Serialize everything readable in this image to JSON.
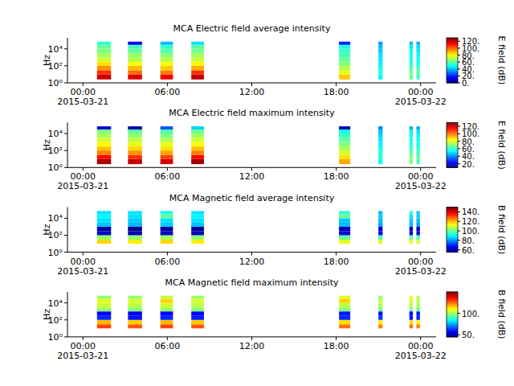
{
  "chart_data": [
    {
      "type": "heatmap",
      "title": "MCA  Electric field average intensity",
      "y_label": "Hz",
      "log": "y",
      "xlim": [
        -1.1,
        25.1
      ],
      "xticks": [
        {
          "value": 0,
          "label": "00:00"
        },
        {
          "value": 6,
          "label": "06:00"
        },
        {
          "value": 12,
          "label": "12:00"
        },
        {
          "value": 18,
          "label": "18:00"
        },
        {
          "value": 24,
          "label": "00:00"
        }
      ],
      "x_date_labels": [
        {
          "value": 0,
          "label": "2015-03-21"
        },
        {
          "value": 24,
          "label": "2015-03-22"
        }
      ],
      "ylim": [
        1,
        200000
      ],
      "yticks": [
        {
          "value": 1,
          "label": "10⁰"
        },
        {
          "value": 100,
          "label": "10²"
        },
        {
          "value": 10000,
          "label": "10⁴"
        }
      ],
      "x_ranges": [
        [
          1.0,
          2.0
        ],
        [
          3.2,
          4.2
        ],
        [
          5.5,
          6.4
        ],
        [
          7.7,
          8.6
        ],
        [
          18.2,
          19.0
        ],
        [
          21.0,
          21.3
        ],
        [
          23.2,
          23.45
        ],
        [
          23.7,
          23.95
        ]
      ],
      "bands": [
        2.5,
        10,
        30,
        100,
        300,
        1000,
        3000,
        10000,
        30000,
        70000
      ],
      "cells": [
        [
          120,
          108,
          95,
          85,
          75,
          70,
          65,
          62,
          55
        ],
        [
          118,
          100,
          90,
          80,
          72,
          68,
          62,
          58,
          15
        ],
        [
          115,
          98,
          88,
          80,
          72,
          66,
          60,
          55,
          40
        ],
        [
          122,
          108,
          92,
          82,
          74,
          70,
          64,
          60,
          45
        ],
        [
          88,
          78,
          72,
          66,
          62,
          58,
          56,
          52,
          20
        ],
        [
          48,
          52,
          50,
          48,
          46,
          45,
          42,
          40,
          35
        ],
        [
          62,
          64,
          58,
          55,
          52,
          50,
          48,
          46,
          40
        ],
        [
          56,
          60,
          56,
          52,
          50,
          48,
          46,
          44,
          38
        ]
      ],
      "colorbar": {
        "label": "E field (dB)",
        "range": [
          0,
          130
        ],
        "ticks": [
          {
            "value": 0,
            "label": "0."
          },
          {
            "value": 20,
            "label": "20."
          },
          {
            "value": 40,
            "label": "40."
          },
          {
            "value": 60,
            "label": "60."
          },
          {
            "value": 80,
            "label": "80."
          },
          {
            "value": 100,
            "label": "100."
          },
          {
            "value": 120,
            "label": "120."
          }
        ]
      }
    },
    {
      "type": "heatmap",
      "title": "MCA  Electric field maximum intensity",
      "y_label": "Hz",
      "log": "y",
      "xlim": [
        -1.1,
        25.1
      ],
      "xticks": [
        {
          "value": 0,
          "label": "00:00"
        },
        {
          "value": 6,
          "label": "06:00"
        },
        {
          "value": 12,
          "label": "12:00"
        },
        {
          "value": 18,
          "label": "18:00"
        },
        {
          "value": 24,
          "label": "00:00"
        }
      ],
      "x_date_labels": [
        {
          "value": 0,
          "label": "2015-03-21"
        },
        {
          "value": 24,
          "label": "2015-03-22"
        }
      ],
      "ylim": [
        1,
        200000
      ],
      "yticks": [
        {
          "value": 1,
          "label": "10⁰"
        },
        {
          "value": 100,
          "label": "10²"
        },
        {
          "value": 10000,
          "label": "10⁴"
        }
      ],
      "x_ranges": [
        [
          1.0,
          2.0
        ],
        [
          3.2,
          4.2
        ],
        [
          5.5,
          6.4
        ],
        [
          7.7,
          8.6
        ],
        [
          18.2,
          19.0
        ],
        [
          21.0,
          21.3
        ],
        [
          23.2,
          23.45
        ],
        [
          23.7,
          23.95
        ]
      ],
      "bands": [
        2.5,
        10,
        30,
        100,
        300,
        1000,
        3000,
        10000,
        30000,
        70000
      ],
      "cells": [
        [
          125,
          115,
          100,
          92,
          85,
          80,
          75,
          70,
          20
        ],
        [
          122,
          110,
          98,
          90,
          82,
          78,
          72,
          66,
          15
        ],
        [
          120,
          108,
          96,
          88,
          82,
          76,
          70,
          65,
          35
        ],
        [
          126,
          115,
          100,
          92,
          84,
          80,
          74,
          68,
          50
        ],
        [
          95,
          88,
          80,
          75,
          70,
          66,
          62,
          58,
          15
        ],
        [
          55,
          60,
          58,
          56,
          54,
          52,
          50,
          48,
          40
        ],
        [
          70,
          72,
          66,
          62,
          60,
          58,
          56,
          54,
          45
        ],
        [
          64,
          66,
          62,
          60,
          58,
          56,
          54,
          52,
          45
        ]
      ],
      "colorbar": {
        "label": "E field (dB)",
        "range": [
          10,
          130
        ],
        "ticks": [
          {
            "value": 20,
            "label": "20."
          },
          {
            "value": 40,
            "label": "40."
          },
          {
            "value": 60,
            "label": "60."
          },
          {
            "value": 80,
            "label": "80."
          },
          {
            "value": 100,
            "label": "100."
          },
          {
            "value": 120,
            "label": "120."
          }
        ]
      }
    },
    {
      "type": "heatmap",
      "title": "MCA  Magnetic field average intensity",
      "y_label": "Hz",
      "log": "y",
      "xlim": [
        -1.1,
        25.1
      ],
      "xticks": [
        {
          "value": 0,
          "label": "00:00"
        },
        {
          "value": 6,
          "label": "06:00"
        },
        {
          "value": 12,
          "label": "12:00"
        },
        {
          "value": 18,
          "label": "18:00"
        },
        {
          "value": 24,
          "label": "00:00"
        }
      ],
      "x_date_labels": [
        {
          "value": 0,
          "label": "2015-03-21"
        },
        {
          "value": 24,
          "label": "2015-03-22"
        }
      ],
      "ylim": [
        1,
        200000
      ],
      "yticks": [
        {
          "value": 1,
          "label": "10⁰"
        },
        {
          "value": 100,
          "label": "10²"
        },
        {
          "value": 10000,
          "label": "10⁴"
        }
      ],
      "x_ranges": [
        [
          1.0,
          2.0
        ],
        [
          3.2,
          4.2
        ],
        [
          5.5,
          6.4
        ],
        [
          7.7,
          8.6
        ],
        [
          18.2,
          19.0
        ],
        [
          21.0,
          21.3
        ],
        [
          23.2,
          23.45
        ],
        [
          23.7,
          23.95
        ]
      ],
      "bands": [
        2.5,
        10,
        30,
        100,
        300,
        1000,
        3000,
        10000,
        30000,
        70000
      ],
      "cells": [
        [
          null,
          118,
          105,
          62,
          58,
          85,
          88,
          90,
          88
        ],
        [
          null,
          116,
          104,
          60,
          56,
          84,
          86,
          88,
          88
        ],
        [
          null,
          118,
          106,
          62,
          58,
          86,
          88,
          100,
          92
        ],
        [
          null,
          116,
          104,
          61,
          57,
          85,
          88,
          90,
          88
        ],
        [
          null,
          112,
          100,
          64,
          60,
          84,
          86,
          100,
          95
        ],
        [
          null,
          110,
          98,
          66,
          62,
          82,
          84,
          86,
          84
        ],
        [
          null,
          112,
          100,
          64,
          60,
          84,
          86,
          88,
          95
        ],
        [
          null,
          110,
          98,
          64,
          60,
          82,
          84,
          86,
          86
        ]
      ],
      "colorbar": {
        "label": "B field (dB)",
        "range": [
          55,
          150
        ],
        "ticks": [
          {
            "value": 60,
            "label": "60."
          },
          {
            "value": 80,
            "label": "80."
          },
          {
            "value": 100,
            "label": "100."
          },
          {
            "value": 120,
            "label": "120."
          },
          {
            "value": 140,
            "label": "140."
          }
        ]
      }
    },
    {
      "type": "heatmap",
      "title": "MCA  Magnetic field maximum intensity",
      "y_label": "Hz",
      "log": "y",
      "xlim": [
        -1.1,
        25.1
      ],
      "xticks": [
        {
          "value": 0,
          "label": "00:00"
        },
        {
          "value": 6,
          "label": "06:00"
        },
        {
          "value": 12,
          "label": "12:00"
        },
        {
          "value": 18,
          "label": "18:00"
        },
        {
          "value": 24,
          "label": "00:00"
        }
      ],
      "x_date_labels": [
        {
          "value": 0,
          "label": "2015-03-21"
        },
        {
          "value": 24,
          "label": "2015-03-22"
        }
      ],
      "ylim": [
        1,
        200000
      ],
      "yticks": [
        {
          "value": 1,
          "label": "10⁰"
        },
        {
          "value": 100,
          "label": "10²"
        },
        {
          "value": 10000,
          "label": "10⁴"
        }
      ],
      "x_ranges": [
        [
          1.0,
          2.0
        ],
        [
          3.2,
          4.2
        ],
        [
          5.5,
          6.4
        ],
        [
          7.7,
          8.6
        ],
        [
          18.2,
          19.0
        ],
        [
          21.0,
          21.3
        ],
        [
          23.2,
          23.45
        ],
        [
          23.7,
          23.95
        ]
      ],
      "bands": [
        2.5,
        10,
        30,
        100,
        300,
        1000,
        3000,
        10000,
        30000,
        70000
      ],
      "cells": [
        [
          null,
          130,
          118,
          62,
          58,
          100,
          105,
          108,
          100
        ],
        [
          null,
          128,
          116,
          60,
          56,
          98,
          104,
          106,
          100
        ],
        [
          null,
          130,
          118,
          62,
          58,
          100,
          106,
          115,
          104
        ],
        [
          null,
          128,
          116,
          61,
          57,
          98,
          104,
          106,
          100
        ],
        [
          null,
          125,
          114,
          62,
          60,
          98,
          104,
          115,
          108
        ],
        [
          null,
          124,
          112,
          64,
          60,
          96,
          102,
          104,
          100
        ],
        [
          null,
          125,
          114,
          60,
          58,
          98,
          104,
          106,
          110
        ],
        [
          null,
          124,
          112,
          62,
          60,
          96,
          102,
          104,
          102
        ]
      ],
      "colorbar": {
        "label": "B field (dB)",
        "range": [
          45,
          150
        ],
        "ticks": [
          {
            "value": 50,
            "label": "50."
          },
          {
            "value": 100,
            "label": "100."
          }
        ]
      }
    }
  ]
}
